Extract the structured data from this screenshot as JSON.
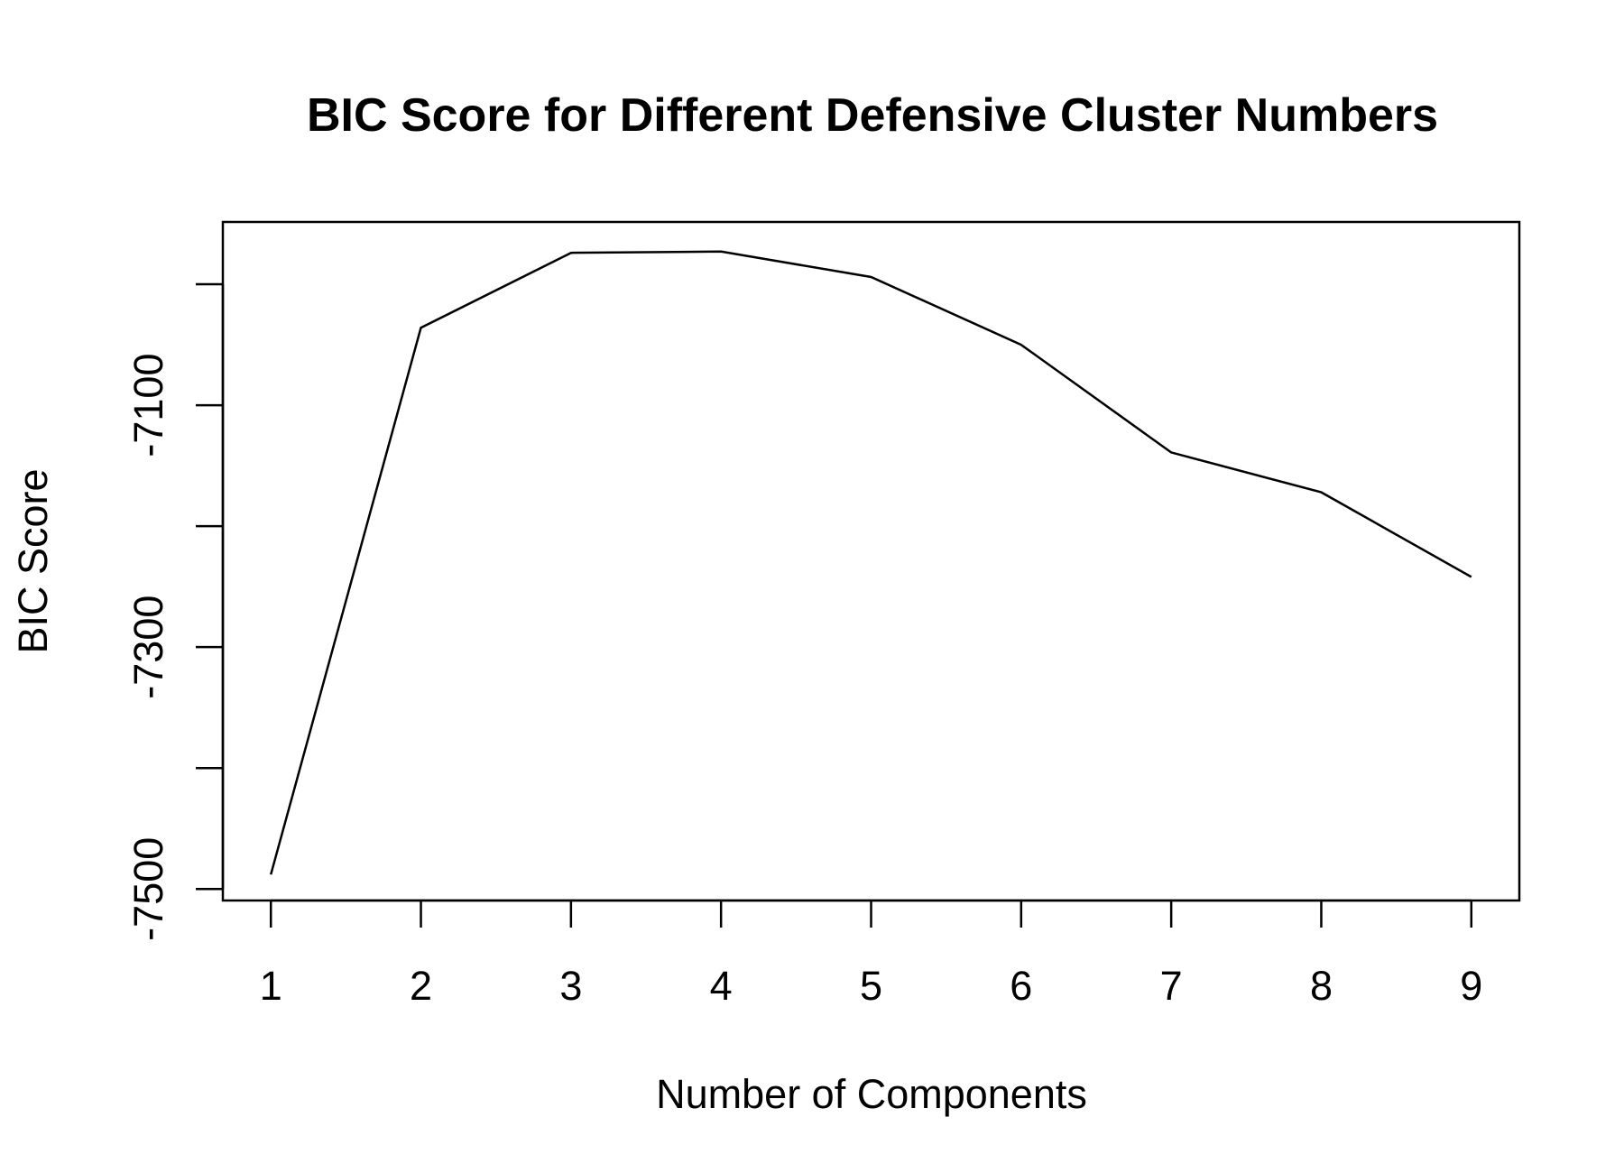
{
  "chart_data": {
    "type": "line",
    "title": "BIC Score for Different Defensive Cluster Numbers",
    "xlabel": "Number of Components",
    "ylabel": "BIC Score",
    "x": [
      1,
      2,
      3,
      4,
      5,
      6,
      7,
      8,
      9
    ],
    "series": [
      {
        "values": [
          -7488,
          -7036,
          -6974,
          -6973,
          -6994,
          -7050,
          -7139,
          -7172,
          -7242
        ]
      }
    ],
    "xticks": [
      1,
      2,
      3,
      4,
      5,
      6,
      7,
      8,
      9
    ],
    "yticks": [
      -7500,
      -7400,
      -7300,
      -7200,
      -7100,
      -7000
    ],
    "ytick_labels": [
      "-7500",
      "",
      "-7300",
      "",
      "-7100",
      ""
    ],
    "xlim": [
      0.68,
      9.32
    ],
    "ylim": [
      -7509.5,
      -6948.5
    ],
    "grid": false,
    "legend": "none",
    "colors": {
      "line": "#000000",
      "axis": "#000000",
      "background": "#ffffff"
    }
  }
}
